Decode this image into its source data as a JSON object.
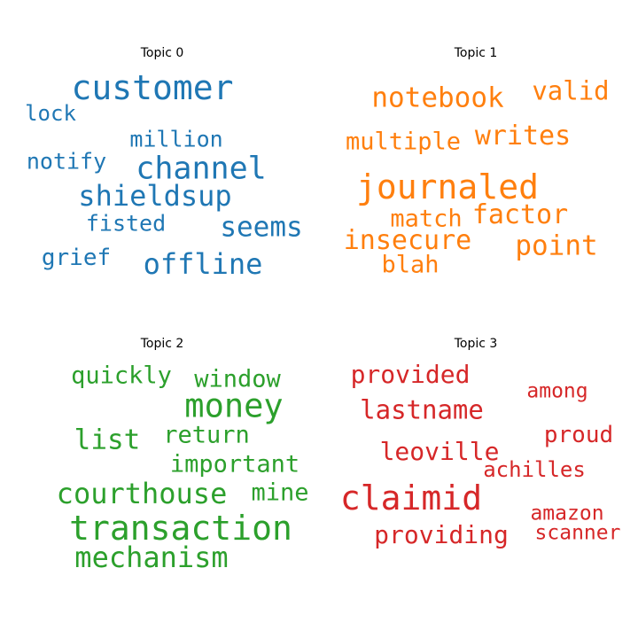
{
  "chart_data": {
    "type": "wordcloud",
    "topics": [
      {
        "title": "Topic 0",
        "color": "#1f77b4",
        "words": [
          {
            "text": "customer",
            "weight": 1.0
          },
          {
            "text": "lock",
            "weight": 0.62
          },
          {
            "text": "million",
            "weight": 0.66
          },
          {
            "text": "notify",
            "weight": 0.66
          },
          {
            "text": "channel",
            "weight": 0.92
          },
          {
            "text": "shieldsup",
            "weight": 0.85
          },
          {
            "text": "fisted",
            "weight": 0.66
          },
          {
            "text": "seems",
            "weight": 0.82
          },
          {
            "text": "grief",
            "weight": 0.69
          },
          {
            "text": "offline",
            "weight": 0.85
          }
        ]
      },
      {
        "title": "Topic 1",
        "color": "#ff7f0e",
        "words": [
          {
            "text": "notebook",
            "weight": 0.82
          },
          {
            "text": "valid",
            "weight": 0.75
          },
          {
            "text": "multiple",
            "weight": 0.72
          },
          {
            "text": "writes",
            "weight": 0.79
          },
          {
            "text": "journaled",
            "weight": 1.0
          },
          {
            "text": "factor",
            "weight": 0.79
          },
          {
            "text": "match",
            "weight": 0.72
          },
          {
            "text": "insecure",
            "weight": 0.79
          },
          {
            "text": "point",
            "weight": 0.82
          },
          {
            "text": "blah",
            "weight": 0.72
          }
        ]
      },
      {
        "title": "Topic 2",
        "color": "#2ca02c",
        "words": [
          {
            "text": "quickly",
            "weight": 0.71
          },
          {
            "text": "window",
            "weight": 0.71
          },
          {
            "text": "money",
            "weight": 0.97
          },
          {
            "text": "list",
            "weight": 0.82
          },
          {
            "text": "return",
            "weight": 0.71
          },
          {
            "text": "important",
            "weight": 0.71
          },
          {
            "text": "courthouse",
            "weight": 0.84
          },
          {
            "text": "mine",
            "weight": 0.71
          },
          {
            "text": "transaction",
            "weight": 1.0
          },
          {
            "text": "mechanism",
            "weight": 0.84
          }
        ]
      },
      {
        "title": "Topic 3",
        "color": "#d62728",
        "words": [
          {
            "text": "provided",
            "weight": 0.74
          },
          {
            "text": "among",
            "weight": 0.6
          },
          {
            "text": "lastname",
            "weight": 0.77
          },
          {
            "text": "proud",
            "weight": 0.69
          },
          {
            "text": "leoville",
            "weight": 0.74
          },
          {
            "text": "achilles",
            "weight": 0.63
          },
          {
            "text": "claimid",
            "weight": 1.0
          },
          {
            "text": "amazon",
            "weight": 0.6
          },
          {
            "text": "providing",
            "weight": 0.74
          },
          {
            "text": "scanner",
            "weight": 0.6
          }
        ]
      }
    ]
  }
}
